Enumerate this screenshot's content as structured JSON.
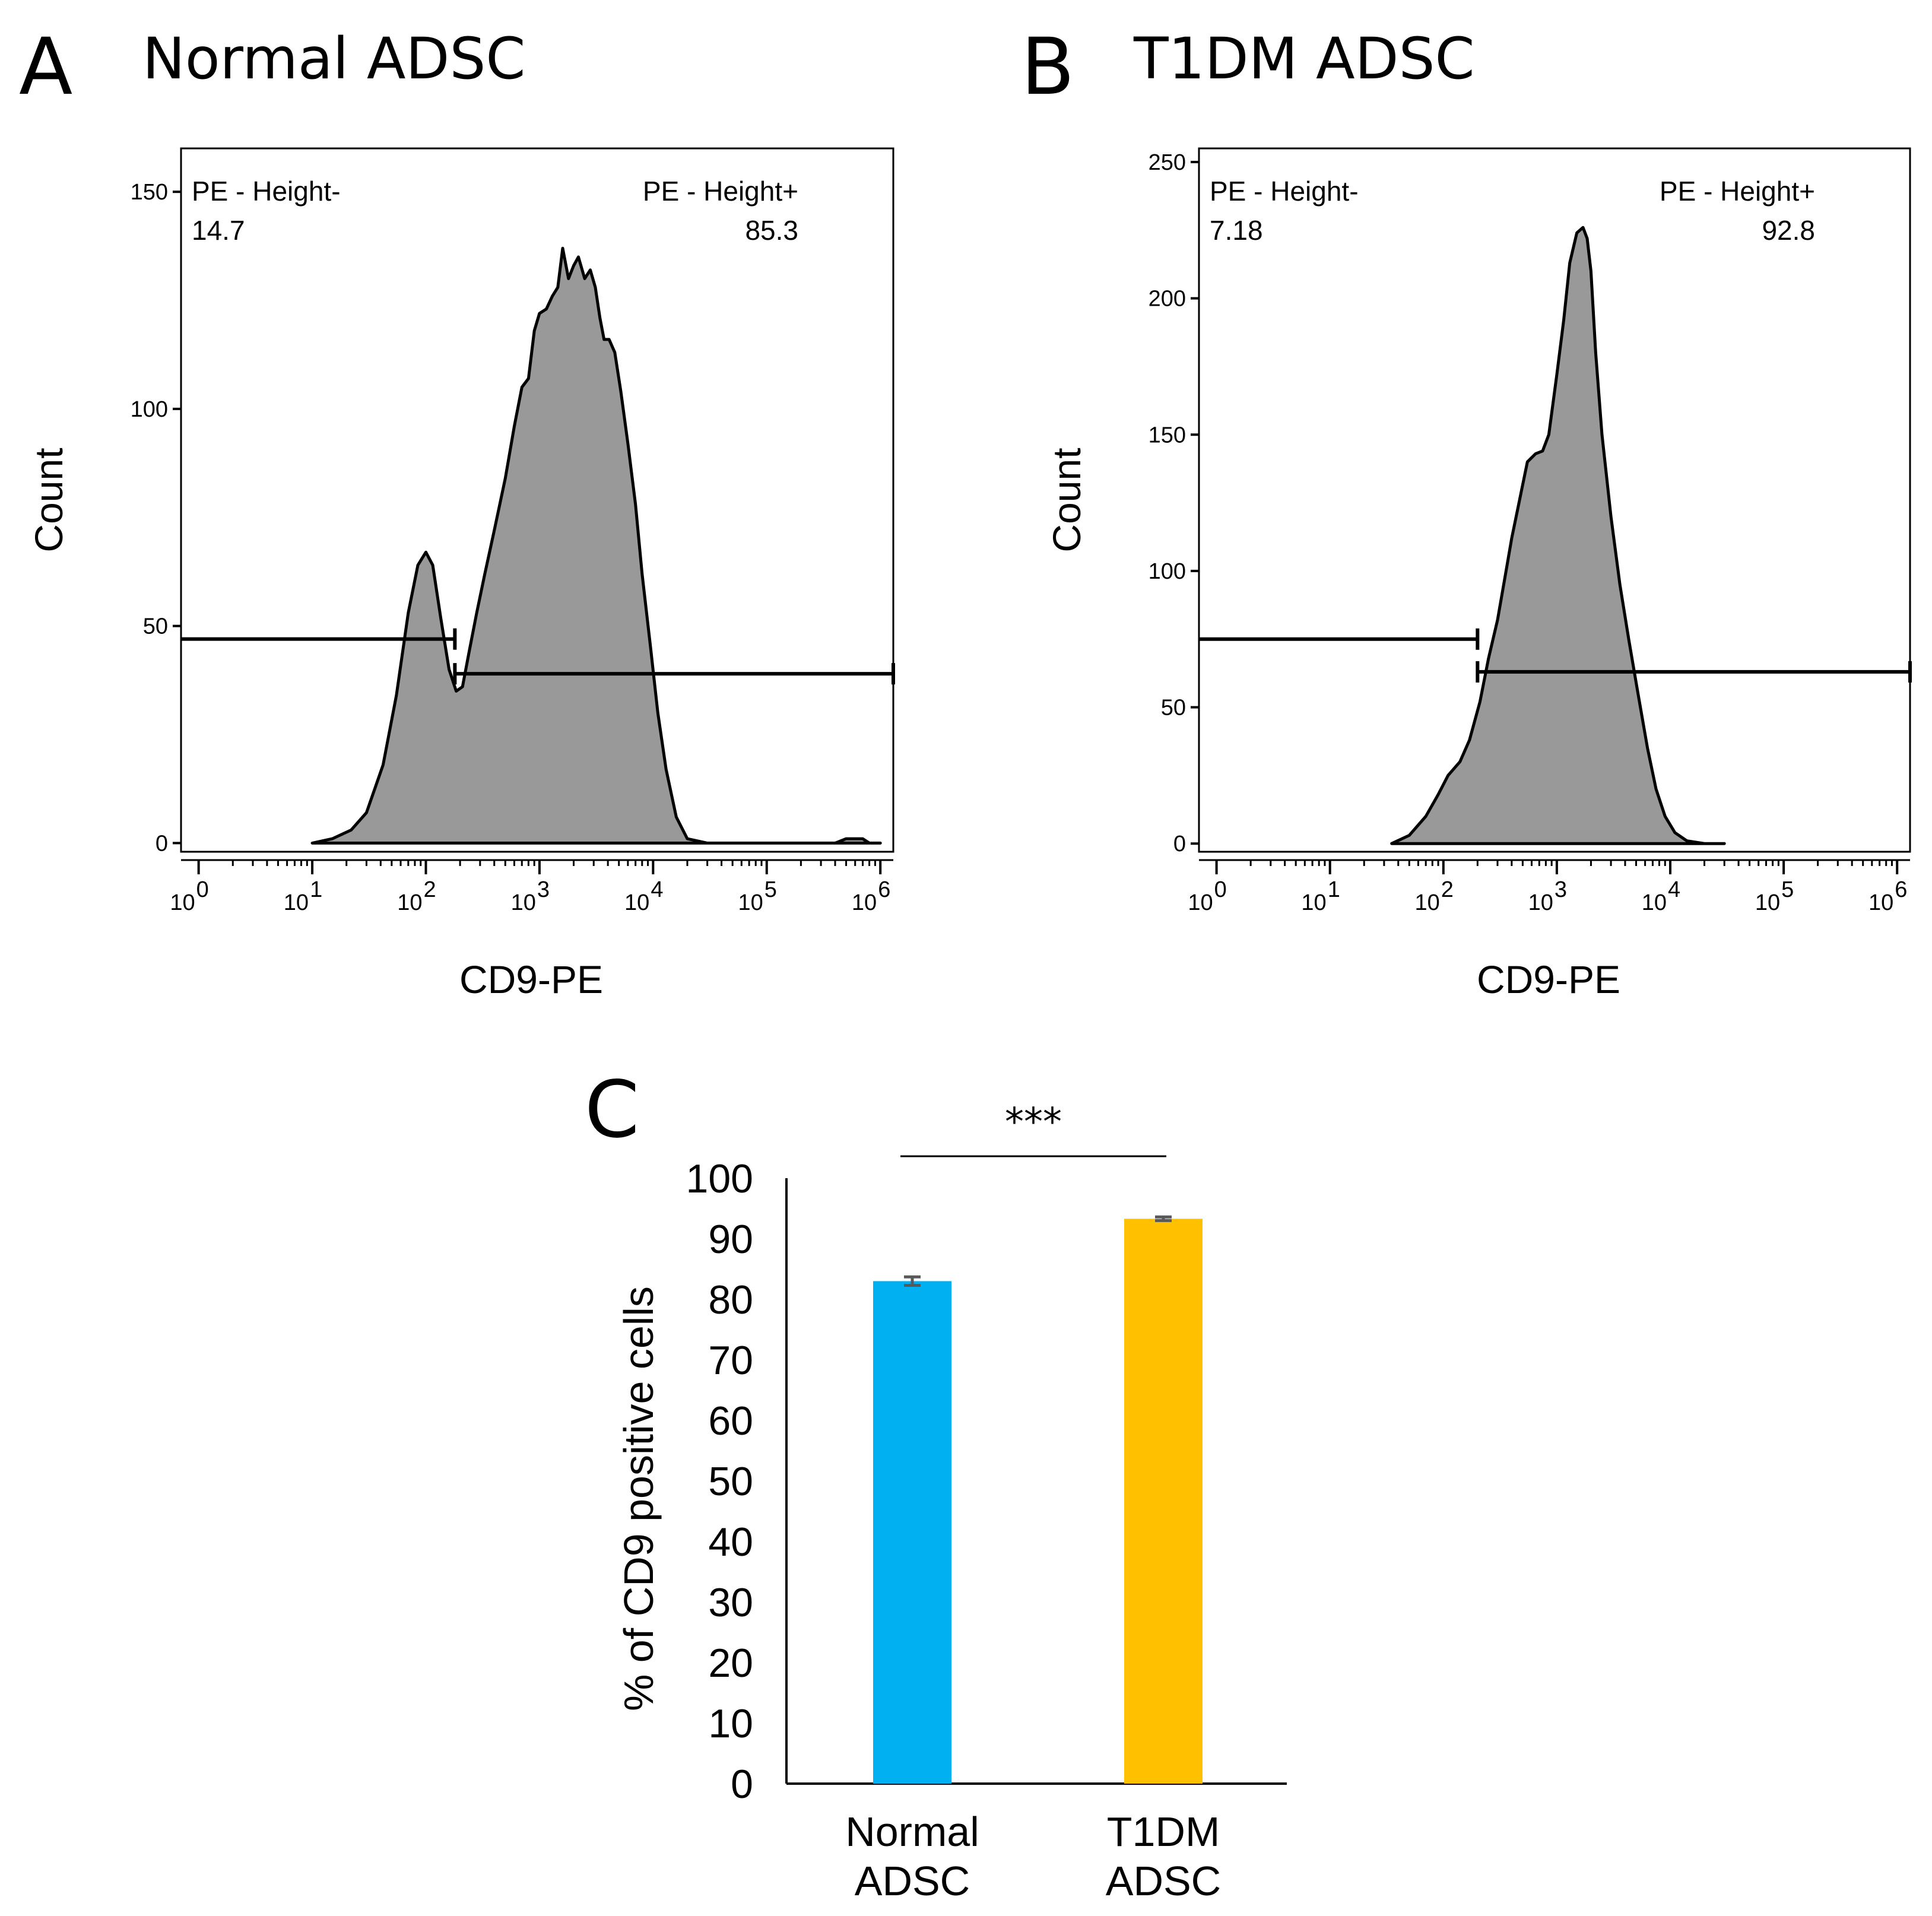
{
  "panel_a": {
    "letter": "A",
    "title": "Normal ADSC"
  },
  "panel_b": {
    "letter": "B",
    "title": "T1DM ADSC"
  },
  "panel_c": {
    "letter": "C"
  },
  "colors": {
    "histogram_fill": "#999999",
    "normal_bar": "#00B0F0",
    "t1dm_bar": "#FFC000",
    "error_bar": "#595959"
  },
  "chart_data": [
    {
      "type": "area",
      "panel": "A",
      "title": "Normal ADSC",
      "xlabel": "CD9-PE",
      "ylabel": "Count",
      "xscale": "log",
      "xlim": [
        0.7,
        1300000
      ],
      "ylim": [
        -2,
        160
      ],
      "yticks": [
        0,
        50,
        100,
        150
      ],
      "xticks": [
        {
          "label": "10",
          "exp": "0",
          "value": 1
        },
        {
          "label": "10",
          "exp": "1",
          "value": 10
        },
        {
          "label": "10",
          "exp": "2",
          "value": 100
        },
        {
          "label": "10",
          "exp": "3",
          "value": 1000
        },
        {
          "label": "10",
          "exp": "4",
          "value": 10000
        },
        {
          "label": "10",
          "exp": "5",
          "value": 100000
        },
        {
          "label": "10",
          "exp": "6",
          "value": 1000000
        }
      ],
      "gates": [
        {
          "label": "PE - Height-",
          "value": "14.7",
          "from": 0.7,
          "to": 180,
          "y": 47
        },
        {
          "label": "PE - Height+",
          "value": "85.3",
          "from": 180,
          "to": 1300000,
          "y": 39
        }
      ],
      "x": [
        10,
        15,
        22,
        30,
        42,
        55,
        70,
        85,
        100,
        115,
        135,
        160,
        185,
        210,
        240,
        280,
        330,
        400,
        500,
        600,
        700,
        800,
        900,
        1000,
        1150,
        1300,
        1450,
        1600,
        1800,
        2000,
        2200,
        2500,
        2800,
        3100,
        3400,
        3700,
        4100,
        4600,
        5200,
        6000,
        7000,
        8000,
        9500,
        11000,
        13000,
        16000,
        20000,
        30000,
        50000,
        80000,
        150000,
        300000,
        400000,
        500000,
        600000,
        700000,
        800000,
        1000000
      ],
      "y": [
        0,
        1,
        3,
        7,
        18,
        34,
        53,
        64,
        67,
        64,
        52,
        40,
        35,
        36,
        44,
        53,
        62,
        72,
        84,
        96,
        105,
        107,
        118,
        122,
        123,
        126,
        128,
        137,
        130,
        133,
        135,
        130,
        132,
        128,
        121,
        116,
        116,
        113,
        104,
        92,
        78,
        62,
        45,
        30,
        17,
        6,
        1,
        0,
        0,
        0,
        0,
        0,
        0,
        1,
        1,
        1,
        0,
        0
      ]
    },
    {
      "type": "area",
      "panel": "B",
      "title": "T1DM ADSC",
      "xlabel": "CD9-PE",
      "ylabel": "Count",
      "xscale": "log",
      "xlim": [
        0.7,
        1300000
      ],
      "ylim": [
        -3,
        255
      ],
      "yticks": [
        0,
        50,
        100,
        150,
        200,
        250
      ],
      "xticks": [
        {
          "label": "10",
          "exp": "0",
          "value": 1
        },
        {
          "label": "10",
          "exp": "1",
          "value": 10
        },
        {
          "label": "10",
          "exp": "2",
          "value": 100
        },
        {
          "label": "10",
          "exp": "3",
          "value": 1000
        },
        {
          "label": "10",
          "exp": "4",
          "value": 10000
        },
        {
          "label": "10",
          "exp": "5",
          "value": 100000
        },
        {
          "label": "10",
          "exp": "6",
          "value": 1000000
        }
      ],
      "gates": [
        {
          "label": "PE - Height-",
          "value": "7.18",
          "from": 0.7,
          "to": 200,
          "y": 75
        },
        {
          "label": "PE - Height+",
          "value": "92.8",
          "from": 200,
          "to": 1300000,
          "y": 63
        }
      ],
      "x": [
        35,
        50,
        70,
        90,
        110,
        140,
        170,
        210,
        250,
        300,
        350,
        400,
        480,
        550,
        650,
        750,
        850,
        1000,
        1150,
        1300,
        1500,
        1700,
        1850,
        2000,
        2200,
        2500,
        3000,
        3600,
        4300,
        5200,
        6300,
        7500,
        9000,
        11000,
        14000,
        20000,
        30000
      ],
      "y": [
        0,
        3,
        10,
        18,
        25,
        30,
        38,
        52,
        68,
        82,
        98,
        112,
        128,
        140,
        143,
        144,
        150,
        172,
        192,
        213,
        224,
        226,
        222,
        210,
        180,
        150,
        120,
        95,
        75,
        55,
        35,
        20,
        10,
        4,
        1,
        0,
        0
      ]
    },
    {
      "type": "bar",
      "panel": "C",
      "categories": [
        "Normal ADSC",
        "T1DM ADSC"
      ],
      "category_lines": [
        [
          "Normal",
          "ADSC"
        ],
        [
          "T1DM",
          "ADSC"
        ]
      ],
      "values": [
        83,
        93.3
      ],
      "errors": [
        0.7,
        0.3
      ],
      "ylabel": "% of CD9 positive cells",
      "xlabel": "",
      "ylim": [
        0,
        100
      ],
      "yticks": [
        0,
        10,
        20,
        30,
        40,
        50,
        60,
        70,
        80,
        90,
        100
      ],
      "significance": "***"
    }
  ]
}
